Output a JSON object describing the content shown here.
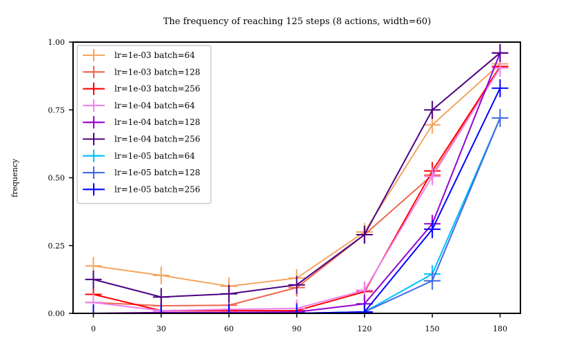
{
  "chart_data": {
    "type": "line",
    "title": "The frequency of reaching 125 steps (8 actions, width=60)",
    "xlabel": "",
    "ylabel": "frequency",
    "x": [
      0,
      30,
      60,
      90,
      120,
      150,
      180
    ],
    "xticks": [
      "0",
      "30",
      "60",
      "90",
      "120",
      "150",
      "180"
    ],
    "yticks": [
      "0.00",
      "0.25",
      "0.50",
      "0.75",
      "1.00"
    ],
    "ylim": [
      0,
      1
    ],
    "xlim": [
      -9,
      189
    ],
    "grid": false,
    "legend_position": "upper-left",
    "marker": "plus-with-errorbar",
    "series": [
      {
        "name": "lr=1e-03 batch=64",
        "color": "#f4a460",
        "values": [
          0.175,
          0.14,
          0.1,
          0.13,
          0.3,
          0.695,
          0.92
        ]
      },
      {
        "name": "lr=1e-03 batch=128",
        "color": "#f0654f",
        "values": [
          0.04,
          0.028,
          0.03,
          0.095,
          0.29,
          0.51,
          0.91
        ]
      },
      {
        "name": "lr=1e-03 batch=256",
        "color": "#ff0000",
        "values": [
          0.07,
          0.01,
          0.01,
          0.01,
          0.08,
          0.525,
          0.91
        ]
      },
      {
        "name": "lr=1e-04 batch=64",
        "color": "#ee82ee",
        "values": [
          0.04,
          0.01,
          0.015,
          0.018,
          0.085,
          0.505,
          0.905
        ]
      },
      {
        "name": "lr=1e-04 batch=128",
        "color": "#9400d3",
        "values": [
          0.0,
          0.003,
          0.003,
          0.005,
          0.035,
          0.33,
          0.96
        ]
      },
      {
        "name": "lr=1e-04 batch=256",
        "color": "#4b0082",
        "values": [
          0.125,
          0.06,
          0.072,
          0.105,
          0.29,
          0.75,
          0.96
        ]
      },
      {
        "name": "lr=1e-05 batch=64",
        "color": "#00bfff",
        "values": [
          0.0,
          0.0,
          0.0,
          0.0,
          0.005,
          0.145,
          0.72
        ]
      },
      {
        "name": "lr=1e-05 batch=128",
        "color": "#4169e1",
        "values": [
          0.0,
          0.0,
          0.0,
          0.0,
          0.005,
          0.12,
          0.72
        ]
      },
      {
        "name": "lr=1e-05 batch=256",
        "color": "#0000ff",
        "values": [
          0.0,
          0.0,
          0.0,
          0.0,
          0.005,
          0.31,
          0.83
        ]
      }
    ]
  }
}
